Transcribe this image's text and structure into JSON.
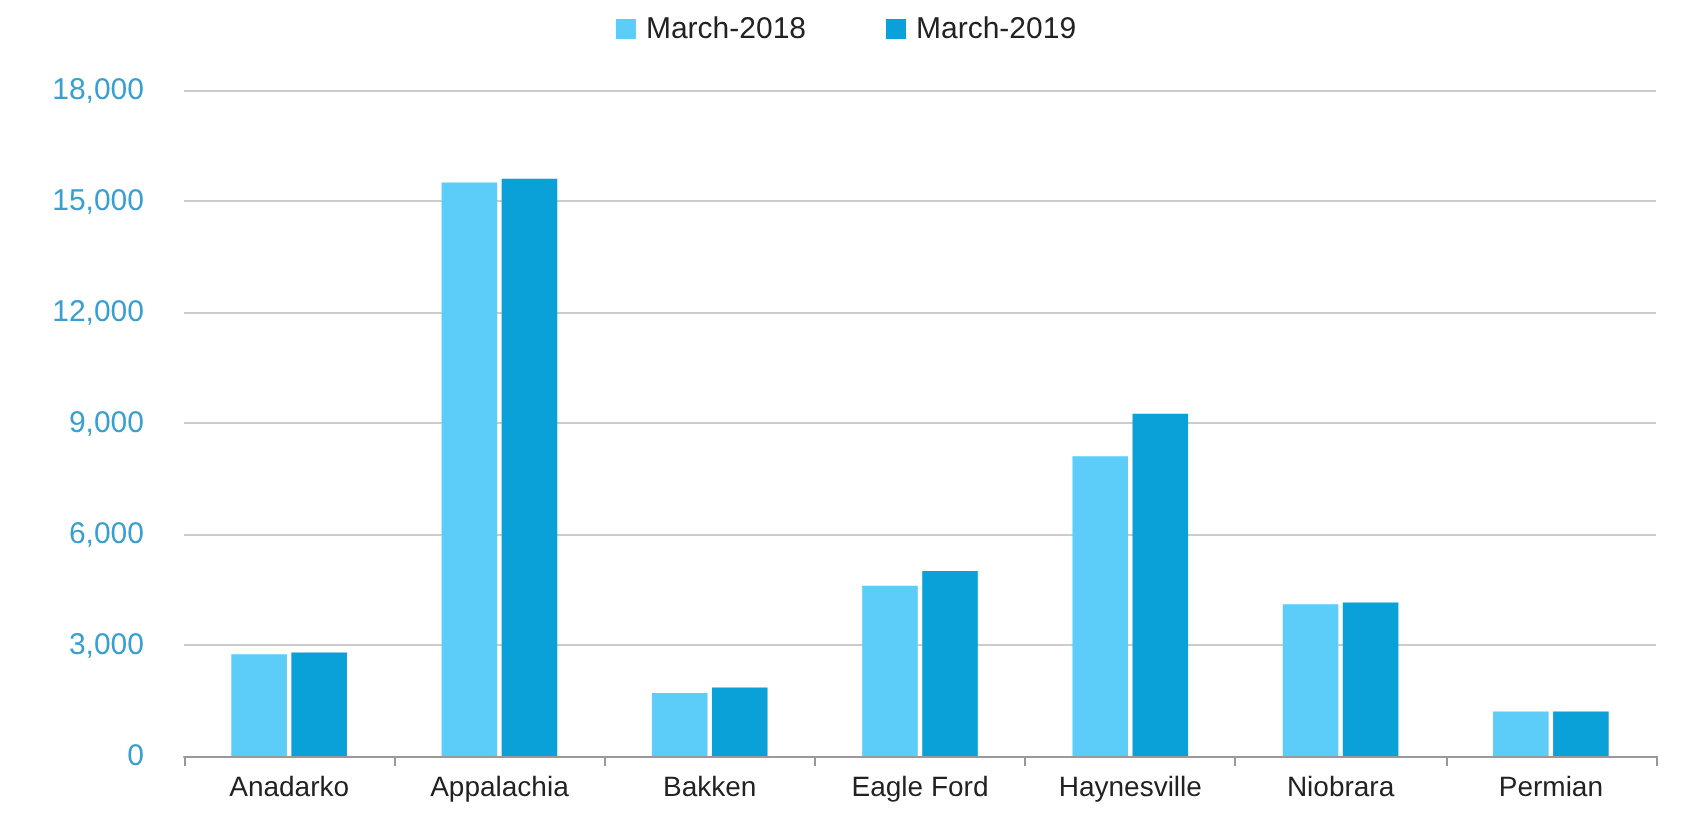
{
  "chart_data": {
    "type": "bar",
    "categories": [
      "Anadarko",
      "Appalachia",
      "Bakken",
      "Eagle Ford",
      "Haynesville",
      "Niobrara",
      "Permian"
    ],
    "series": [
      {
        "name": "March-2018",
        "color": "#5ccdf8",
        "values": [
          2750,
          15500,
          1700,
          4600,
          8100,
          4100,
          1200
        ]
      },
      {
        "name": "March-2019",
        "color": "#0aa0d8",
        "values": [
          2800,
          15600,
          1850,
          5000,
          9250,
          4150,
          1200
        ]
      }
    ],
    "ylim": [
      0,
      18000
    ],
    "yticks": [
      {
        "value": 0,
        "label": "0"
      },
      {
        "value": 3000,
        "label": "3,000"
      },
      {
        "value": 6000,
        "label": "6,000"
      },
      {
        "value": 9000,
        "label": "9,000"
      },
      {
        "value": 12000,
        "label": "12,000"
      },
      {
        "value": 15000,
        "label": "15,000"
      },
      {
        "value": 18000,
        "label": "18,000"
      }
    ],
    "grid": "y",
    "legend": "top"
  }
}
